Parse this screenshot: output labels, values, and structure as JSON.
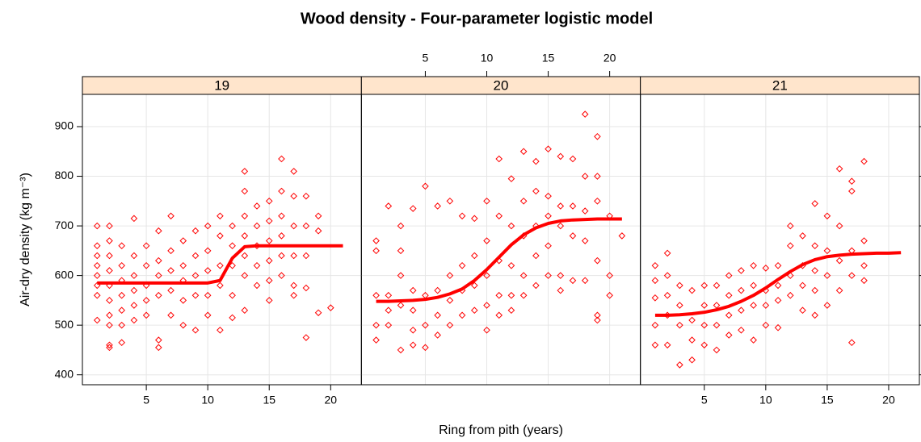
{
  "title": "Wood density - Four-parameter logistic model",
  "xlabel": "Ring from pith (years)",
  "ylabel": "Air-dry density (kg m⁻³)",
  "chart_data": [
    {
      "type": "scatter",
      "panel": "19",
      "color": "#ff0000",
      "grid": true,
      "xlim": [
        -0.2,
        22.5
      ],
      "xticks": [
        5,
        10,
        15,
        20
      ],
      "xtick_side": "bottom",
      "ylim": [
        380,
        965
      ],
      "yticks": [
        400,
        500,
        600,
        700,
        800,
        900
      ],
      "ytick_side": "left",
      "x": [
        1,
        1,
        1,
        1,
        1,
        1,
        1,
        1,
        2,
        2,
        2,
        2,
        2,
        2,
        2,
        2,
        2,
        2,
        3,
        3,
        3,
        3,
        3,
        3,
        3,
        4,
        4,
        4,
        4,
        4,
        4,
        5,
        5,
        5,
        5,
        5,
        6,
        6,
        6,
        6,
        6,
        6,
        7,
        7,
        7,
        7,
        7,
        8,
        8,
        8,
        8,
        8,
        9,
        9,
        9,
        9,
        9,
        10,
        10,
        10,
        10,
        10,
        11,
        11,
        11,
        11,
        11,
        12,
        12,
        12,
        12,
        12,
        13,
        13,
        13,
        13,
        13,
        13,
        13,
        14,
        14,
        14,
        14,
        14,
        15,
        15,
        15,
        15,
        15,
        15,
        16,
        16,
        16,
        16,
        16,
        16,
        17,
        17,
        17,
        17,
        17,
        17,
        18,
        18,
        18,
        18,
        18,
        19,
        19,
        19,
        20
      ],
      "values": [
        700,
        660,
        640,
        620,
        600,
        580,
        560,
        510,
        700,
        670,
        640,
        610,
        580,
        550,
        520,
        500,
        460,
        455,
        660,
        620,
        590,
        560,
        530,
        500,
        465,
        715,
        640,
        600,
        570,
        540,
        510,
        660,
        620,
        580,
        550,
        520,
        690,
        630,
        600,
        560,
        470,
        455,
        720,
        650,
        610,
        570,
        520,
        670,
        620,
        590,
        550,
        500,
        690,
        640,
        600,
        560,
        490,
        700,
        650,
        610,
        560,
        520,
        720,
        680,
        620,
        580,
        490,
        700,
        660,
        620,
        560,
        515,
        810,
        770,
        720,
        680,
        640,
        600,
        530,
        740,
        700,
        660,
        620,
        580,
        750,
        710,
        670,
        630,
        590,
        550,
        835,
        770,
        720,
        680,
        640,
        600,
        810,
        760,
        700,
        640,
        580,
        560,
        760,
        700,
        640,
        575,
        475,
        720,
        690,
        525,
        535
      ],
      "fit": {
        "x": [
          1,
          2,
          3,
          4,
          5,
          6,
          7,
          8,
          9,
          10,
          11,
          12,
          13,
          14,
          15,
          16,
          17,
          18,
          19,
          20,
          21
        ],
        "values": [
          585,
          585,
          585,
          585,
          585,
          585,
          585,
          585,
          585,
          585,
          590,
          635,
          658,
          660,
          660,
          660,
          660,
          660,
          660,
          660,
          660
        ]
      }
    },
    {
      "type": "scatter",
      "panel": "20",
      "color": "#ff0000",
      "grid": true,
      "xlim": [
        -0.2,
        22.5
      ],
      "xticks": [
        5,
        10,
        15,
        20
      ],
      "xtick_side": "top",
      "ylim": [
        380,
        965
      ],
      "yticks": [
        400,
        500,
        600,
        700,
        800,
        900
      ],
      "ytick_side": "none",
      "x": [
        1,
        1,
        1,
        1,
        1,
        2,
        2,
        2,
        2,
        3,
        3,
        3,
        3,
        3,
        4,
        4,
        4,
        4,
        4,
        5,
        5,
        5,
        5,
        6,
        6,
        6,
        6,
        7,
        7,
        7,
        7,
        8,
        8,
        8,
        8,
        9,
        9,
        9,
        9,
        10,
        10,
        10,
        10,
        10,
        11,
        11,
        11,
        11,
        11,
        12,
        12,
        12,
        12,
        12,
        13,
        13,
        13,
        13,
        13,
        14,
        14,
        14,
        14,
        14,
        15,
        15,
        15,
        15,
        15,
        16,
        16,
        16,
        16,
        16,
        17,
        17,
        17,
        17,
        18,
        18,
        18,
        18,
        18,
        19,
        19,
        19,
        19,
        19,
        19,
        20,
        20,
        20,
        21
      ],
      "values": [
        670,
        650,
        560,
        500,
        470,
        740,
        560,
        530,
        500,
        700,
        650,
        600,
        540,
        450,
        735,
        570,
        530,
        490,
        460,
        780,
        560,
        500,
        455,
        740,
        570,
        520,
        480,
        750,
        600,
        550,
        500,
        720,
        620,
        570,
        520,
        715,
        640,
        580,
        530,
        750,
        670,
        600,
        540,
        490,
        835,
        720,
        630,
        560,
        520,
        795,
        700,
        620,
        560,
        530,
        850,
        750,
        680,
        600,
        560,
        830,
        770,
        700,
        640,
        580,
        855,
        760,
        720,
        660,
        600,
        840,
        740,
        700,
        600,
        570,
        835,
        740,
        680,
        590,
        925,
        800,
        730,
        670,
        590,
        880,
        800,
        750,
        630,
        520,
        510,
        720,
        600,
        560,
        680
      ],
      "fit": {
        "x": [
          1,
          2,
          3,
          4,
          5,
          6,
          7,
          8,
          9,
          10,
          11,
          12,
          13,
          14,
          15,
          16,
          17,
          18,
          19,
          20,
          21
        ],
        "values": [
          548,
          548,
          549,
          550,
          552,
          556,
          563,
          573,
          590,
          612,
          637,
          662,
          682,
          696,
          705,
          710,
          712,
          713,
          714,
          714,
          714
        ]
      }
    },
    {
      "type": "scatter",
      "panel": "21",
      "color": "#ff0000",
      "grid": true,
      "xlim": [
        -0.2,
        22.5
      ],
      "xticks": [
        5,
        10,
        15,
        20
      ],
      "xtick_side": "bottom",
      "ylim": [
        380,
        965
      ],
      "yticks": [
        400,
        500,
        600,
        700,
        800,
        900
      ],
      "ytick_side": "right",
      "x": [
        1,
        1,
        1,
        1,
        1,
        2,
        2,
        2,
        2,
        2,
        3,
        3,
        3,
        3,
        4,
        4,
        4,
        4,
        5,
        5,
        5,
        5,
        6,
        6,
        6,
        6,
        7,
        7,
        7,
        7,
        8,
        8,
        8,
        8,
        9,
        9,
        9,
        9,
        10,
        10,
        10,
        10,
        11,
        11,
        11,
        11,
        12,
        12,
        12,
        12,
        13,
        13,
        13,
        13,
        14,
        14,
        14,
        14,
        14,
        15,
        15,
        15,
        15,
        16,
        16,
        16,
        16,
        17,
        17,
        17,
        17,
        17,
        18,
        18,
        18,
        18
      ],
      "values": [
        620,
        590,
        555,
        500,
        460,
        645,
        600,
        560,
        520,
        460,
        580,
        540,
        500,
        420,
        570,
        510,
        470,
        430,
        580,
        540,
        500,
        460,
        580,
        540,
        500,
        450,
        600,
        560,
        520,
        480,
        610,
        570,
        530,
        490,
        620,
        580,
        540,
        470,
        615,
        570,
        540,
        500,
        620,
        580,
        550,
        495,
        700,
        660,
        600,
        560,
        680,
        620,
        580,
        530,
        745,
        660,
        610,
        570,
        520,
        720,
        650,
        600,
        540,
        815,
        700,
        630,
        570,
        790,
        770,
        650,
        600,
        465,
        830,
        670,
        620,
        590
      ],
      "fit": {
        "x": [
          1,
          2,
          3,
          4,
          5,
          6,
          7,
          8,
          9,
          10,
          11,
          12,
          13,
          14,
          15,
          16,
          17,
          18,
          19,
          20,
          21
        ],
        "values": [
          520,
          520,
          521,
          523,
          526,
          531,
          538,
          548,
          560,
          575,
          592,
          608,
          622,
          632,
          638,
          641,
          643,
          644,
          645,
          645,
          646
        ]
      }
    }
  ]
}
